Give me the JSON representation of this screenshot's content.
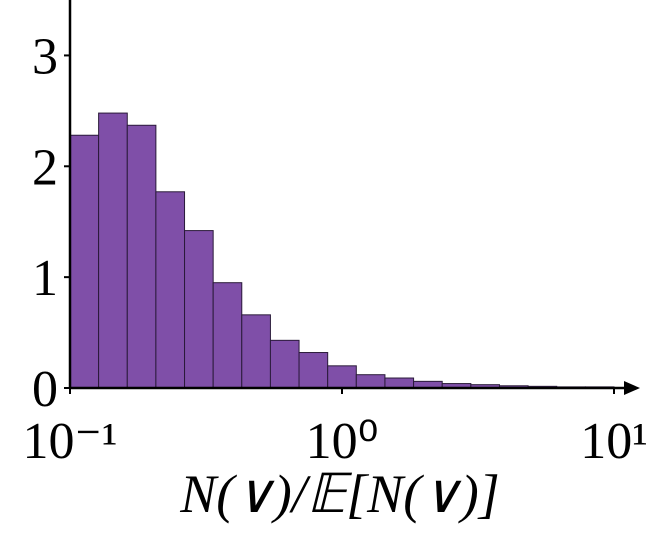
{
  "chart_data": {
    "type": "histogram",
    "bins": [
      0.1,
      0.1274,
      0.1624,
      0.2069,
      0.2637,
      0.336,
      0.4281,
      0.5456,
      0.6952,
      0.8859,
      1.1288,
      1.4384,
      1.833,
      2.3357,
      2.9764,
      3.7927,
      4.8329,
      6.1585,
      7.8476,
      10
    ],
    "values": [
      2.28,
      2.48,
      2.37,
      1.77,
      1.42,
      0.95,
      0.66,
      0.43,
      0.32,
      0.2,
      0.12,
      0.09,
      0.06,
      0.04,
      0.03,
      0.02,
      0.015,
      0.01,
      0.01
    ],
    "color": "#7f4fa8",
    "xlabel": "N(∨)/𝔼[N(∨)]",
    "xscale": "log",
    "xlim": [
      0.1,
      10
    ],
    "xticks": [
      {
        "value": 0.1,
        "label": "10⁻¹"
      },
      {
        "value": 1,
        "label": "10⁰"
      },
      {
        "value": 10,
        "label": "10¹"
      }
    ],
    "ylim": [
      0,
      3.5
    ],
    "yticks": [
      0,
      1,
      2,
      3
    ],
    "grid": false
  }
}
